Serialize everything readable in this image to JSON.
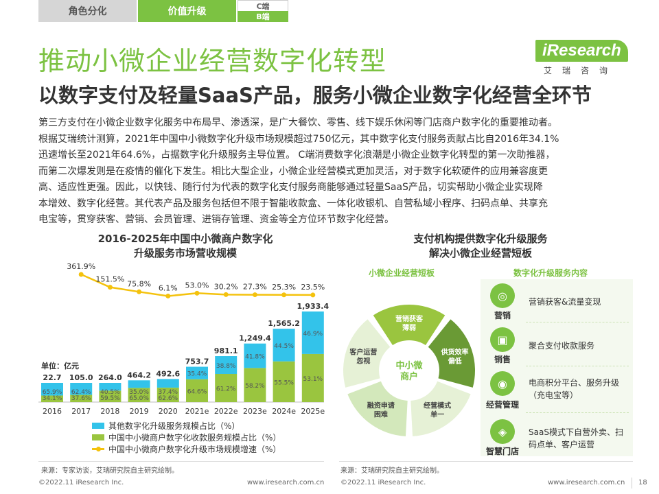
{
  "tabs": {
    "tab1": "角色分化",
    "tab2": "价值升级",
    "tab3_top": "C端",
    "tab3_bottom": "B端"
  },
  "logo": {
    "main": "iResearch",
    "sub": "艾瑞咨询"
  },
  "title": "推动小微企业经营数字化转型",
  "subtitle": "以数字支付及轻量SaaS产品，服务小微企业数字化经营全环节",
  "paragraph": [
    "第三方支付在小微企业数字化服务中布局早、渗透深，是广大餐饮、零售、线下娱乐休闲等门店商户数字化的重要推动者。",
    "根据艾瑞统计测算，2021年中国中小微数字化升级市场规模超过750亿元，其中数字化支付服务贡献占比自2016年34.1%",
    "迅速增长至2021年64.6%，占据数字化升级服务主导位置。 C端消费数字化浪潮是小微企业数字化转型的第一次助推器，",
    "而第二次爆发则是在疫情的催化下发生。相比大型企业，小微企业经营模式更加灵活，对于数字化软硬件的应用兼容度更",
    "高、适应性更强。因此，以快钱、随行付为代表的数字化支付服务商能够通过轻量SaaS产品，切实帮助小微企业实现降",
    "本增效、数字化经营。其代表产品及服务包括但不限于智能收款盒、一体化收银机、自营私域小程序、扫码点单、共享充",
    "电宝等，贯穿获客、营销、会员管理、进销存管理、资金等全方位环节数字化经营。"
  ],
  "chart_data": {
    "type": "bar",
    "title_line1": "2016-2025年中国中小微商户数字化",
    "title_line2": "升级服务市场营收规模",
    "unit": "单位：亿元",
    "categories": [
      "2016",
      "2017",
      "2018",
      "2019",
      "2020",
      "2021e",
      "2022e",
      "2023e",
      "2024e",
      "2025e"
    ],
    "totals": [
      22.7,
      105.0,
      264.0,
      464.2,
      492.6,
      753.7,
      981.1,
      1249.4,
      1565.2,
      1933.4
    ],
    "total_labels": [
      "22.7",
      "105.0",
      "264.0",
      "464.2",
      "492.6",
      "753.7",
      "981.1",
      "1,249.4",
      "1,565.2",
      "1,933.4"
    ],
    "series": [
      {
        "name": "中国中小微商户数字化收款服务规模占比（%）",
        "color": "#9ac53f",
        "values": [
          34.1,
          37.6,
          59.5,
          65.0,
          62.6,
          64.6,
          61.2,
          58.2,
          55.5,
          53.1
        ],
        "labels": [
          "34.1%",
          "37.6%",
          "59.5%",
          "65.0%",
          "62.6%",
          "64.6%",
          "61.2%",
          "58.2%",
          "55.5%",
          "53.1%"
        ]
      },
      {
        "name": "其他数字化升级服务规模占比（%）",
        "color": "#33c3ea",
        "values": [
          65.9,
          62.4,
          40.5,
          35.0,
          37.4,
          35.4,
          38.8,
          41.8,
          44.5,
          46.9
        ],
        "labels": [
          "65.9%",
          "62.4%",
          "40.5%",
          "35.0%",
          "37.4%",
          "35.4%",
          "38.8%",
          "41.8%",
          "44.5%",
          "46.9%"
        ]
      }
    ],
    "growth": {
      "name": "中国中小微商户数字化升级市场规模增速（%）",
      "color": "#f4c20d",
      "values": [
        361.9,
        151.5,
        75.8,
        6.1,
        53.0,
        30.2,
        27.3,
        25.3,
        23.5
      ],
      "labels": [
        "361.9%",
        "151.5%",
        "75.8%",
        "6.1%",
        "53.0%",
        "30.2%",
        "27.3%",
        "25.3%",
        "23.5%"
      ]
    }
  },
  "legend": {
    "other": "其他数字化升级服务规模占比（%）",
    "payment": "中国中小微商户数字化收款服务规模占比（%）",
    "growth": "中国中小微商户数字化升级市场规模增速（%）"
  },
  "source_left": "来源：专家访谈，艾瑞研究院自主研究绘制。",
  "source_right": "来源：艾瑞研究院自主研究绘制。",
  "footer": {
    "copyright_left": "©2022.11 iResearch Inc.",
    "url_left": "www.iresearch.com.cn",
    "copyright_right": "©2022.11 iResearch Inc.",
    "url_right": "www.iresearch.com.cn",
    "page": "18"
  },
  "diagram": {
    "title_line1": "支付机构提供数字化升级服务",
    "title_line2": "解决小微企业经营短板",
    "left_label": "小微企业经营短板",
    "right_label": "数字化升级服务内容",
    "center": [
      "中小微",
      "商户"
    ],
    "segments": [
      {
        "lines": [
          "营销获客",
          "薄弱"
        ],
        "color": "#9ac53f"
      },
      {
        "lines": [
          "供货效率",
          "偏低"
        ],
        "color": "#6a9a35"
      },
      {
        "lines": [
          "经营模式",
          "单一"
        ],
        "color": "#e6f1d6"
      },
      {
        "lines": [
          "融资申请",
          "困难"
        ],
        "color": "#d3e8bb"
      },
      {
        "lines": [
          "客户运营",
          "忽视"
        ],
        "color": "#e6f1d6"
      }
    ],
    "services": [
      {
        "label": "营销",
        "text": "营销获客&流量变现",
        "icon": "target-icon",
        "glyph": "◎"
      },
      {
        "label": "销售",
        "text": "聚合支付收款服务",
        "icon": "box-icon",
        "glyph": "▣"
      },
      {
        "label": "经营管理",
        "text": "电商积分平台、服务升级（充电宝等）",
        "icon": "location-pin-icon",
        "glyph": "◉"
      },
      {
        "label": "智慧门店",
        "text": "SaaS模式下自营外卖、扫码点单、客户运营",
        "icon": "coins-icon",
        "glyph": "◈"
      }
    ]
  }
}
